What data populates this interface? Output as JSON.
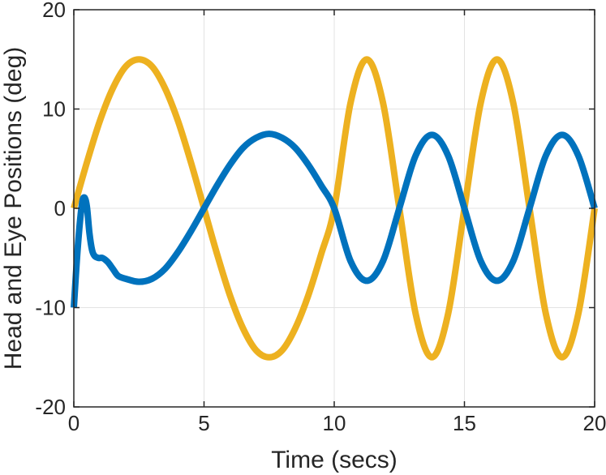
{
  "chart_data": {
    "type": "line",
    "title": "",
    "xlabel": "Time (secs)",
    "ylabel": "Head and Eye Positions (deg)",
    "xlim": [
      0,
      20
    ],
    "ylim": [
      -20,
      20
    ],
    "xticks": [
      0,
      5,
      10,
      15,
      20
    ],
    "yticks": [
      -20,
      -10,
      0,
      10,
      20
    ],
    "xtick_labels": [
      "0",
      "5",
      "10",
      "15",
      "20"
    ],
    "ytick_labels": [
      "-20",
      "-10",
      "0",
      "10",
      "20"
    ],
    "grid": true,
    "series": [
      {
        "color": "#edb120",
        "x": [
          0,
          0.5,
          1,
          1.5,
          2,
          2.5,
          3,
          3.5,
          4,
          4.5,
          5,
          5.5,
          6,
          6.5,
          7,
          7.5,
          8,
          8.5,
          9,
          9.5,
          10,
          10.625,
          11.25,
          11.875,
          12.5,
          13.125,
          13.75,
          14.375,
          15,
          15.625,
          16.25,
          16.875,
          17.5,
          18.125,
          18.75,
          19.375,
          20
        ],
        "y": [
          0,
          4.6,
          8.8,
          12.1,
          14.3,
          15,
          14.3,
          12.1,
          8.8,
          4.6,
          0,
          -4.6,
          -8.8,
          -12.1,
          -14.3,
          -15,
          -14.3,
          -12.1,
          -8.8,
          -4.6,
          0,
          10.6,
          15,
          10.6,
          0,
          -10.6,
          -15,
          -10.6,
          0,
          10.6,
          15,
          10.6,
          0,
          -10.6,
          -15,
          -10.6,
          0
        ]
      },
      {
        "color": "#0072bd",
        "x": [
          0,
          0.15,
          0.3,
          0.4,
          0.5,
          0.6,
          0.7,
          0.8,
          0.95,
          1.1,
          1.3,
          1.5,
          1.7,
          2,
          2.5,
          3,
          3.5,
          4,
          4.5,
          5,
          5.5,
          6,
          6.5,
          7,
          7.5,
          8,
          8.5,
          9,
          9.5,
          10,
          10.625,
          11.25,
          11.875,
          12.5,
          13.125,
          13.75,
          14.375,
          15,
          15.625,
          16.25,
          16.875,
          17.5,
          18.125,
          18.75,
          19.375,
          20
        ],
        "y": [
          -10,
          -4,
          0.2,
          1.1,
          0.2,
          -2.5,
          -4.2,
          -4.8,
          -5,
          -5,
          -5.4,
          -6.1,
          -6.8,
          -7.1,
          -7.4,
          -7.1,
          -6.1,
          -4.4,
          -2.3,
          0,
          2.3,
          4.4,
          6.1,
          7.1,
          7.5,
          7.1,
          6.1,
          4.4,
          2.3,
          0,
          -5.3,
          -7.3,
          -5.3,
          0,
          5.3,
          7.4,
          5.3,
          0,
          -5.3,
          -7.3,
          -5.3,
          0,
          5.3,
          7.4,
          5.3,
          0
        ]
      }
    ]
  }
}
